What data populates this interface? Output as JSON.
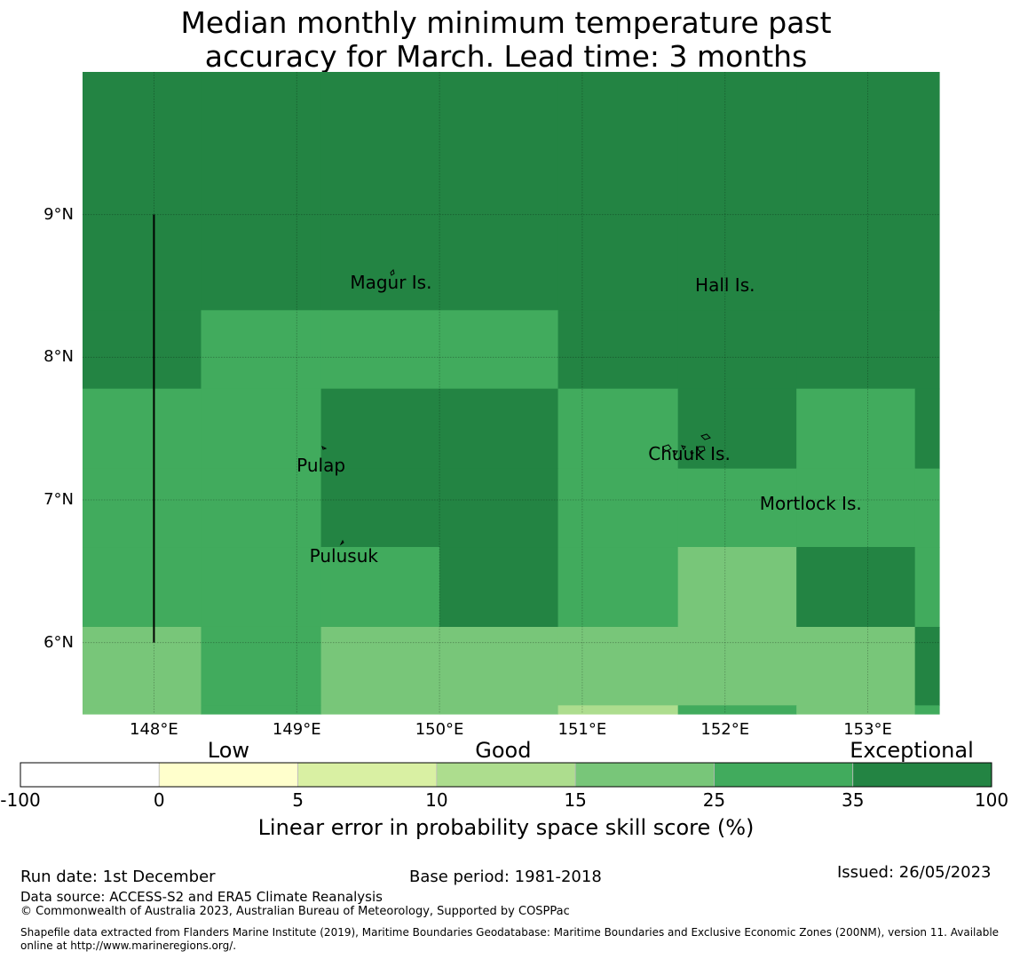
{
  "title": {
    "line1": "Median monthly minimum temperature past",
    "line2": "accuracy for March. Lead time: 3 months"
  },
  "map": {
    "lat_range": [
      5.5,
      10.0
    ],
    "lon_range": [
      147.5,
      153.5
    ],
    "lat_ticks": [
      {
        "value": 9,
        "label": "9°N"
      },
      {
        "value": 8,
        "label": "8°N"
      },
      {
        "value": 7,
        "label": "7°N"
      },
      {
        "value": 6,
        "label": "6°N"
      }
    ],
    "lon_ticks": [
      {
        "value": 148,
        "label": "148°E"
      },
      {
        "value": 149,
        "label": "149°E"
      },
      {
        "value": 150,
        "label": "150°E"
      },
      {
        "value": 151,
        "label": "151°E"
      },
      {
        "value": 152,
        "label": "152°E"
      },
      {
        "value": 153,
        "label": "153°E"
      }
    ],
    "places": [
      {
        "name": "Magur Is.",
        "lon": 149.66,
        "lat": 8.6
      },
      {
        "name": "Hall Is.",
        "lon": 152.0,
        "lat": 8.58
      },
      {
        "name": "Pulap",
        "lon": 149.17,
        "lat": 7.32
      },
      {
        "name": "Chuuk Is.",
        "lon": 151.75,
        "lat": 7.4
      },
      {
        "name": "Mortlock Is.",
        "lon": 152.6,
        "lat": 7.05
      },
      {
        "name": "Pulusuk",
        "lon": 149.33,
        "lat": 6.68
      }
    ],
    "boundary_line": {
      "lon": 148.0,
      "lat_from": 6.0,
      "lat_to": 9.0
    }
  },
  "chart_data": {
    "type": "heatmap",
    "colorbar": {
      "boundaries": [
        "-100",
        "0",
        "5",
        "10",
        "15",
        "25",
        "35",
        "100"
      ],
      "colors": [
        "#ffffff",
        "#ffffcc",
        "#d9f0a3",
        "#addd8e",
        "#78c679",
        "#41ab5d",
        "#238443"
      ],
      "categories": [
        {
          "label": "Low",
          "from": 0,
          "to": 5
        },
        {
          "label": "Good",
          "from": 10,
          "to": 15
        },
        {
          "label": "Exceptional",
          "from": 35,
          "to": 100
        }
      ],
      "label": "Linear error in probability space skill score (%)"
    },
    "lon_edges": [
      147.5,
      148.33,
      149.17,
      150.0,
      150.83,
      151.67,
      152.5,
      153.33,
      153.5
    ],
    "lat_edges": [
      10.0,
      8.33,
      7.78,
      7.22,
      6.67,
      6.11,
      5.56,
      5.5
    ],
    "skill_class": [
      [
        6,
        6,
        6,
        6,
        6,
        6,
        6,
        6
      ],
      [
        6,
        5,
        5,
        5,
        6,
        6,
        6,
        6
      ],
      [
        5,
        5,
        6,
        6,
        5,
        6,
        5,
        6
      ],
      [
        5,
        5,
        6,
        6,
        5,
        5,
        5,
        5
      ],
      [
        5,
        5,
        5,
        6,
        5,
        4,
        6,
        5
      ],
      [
        4,
        5,
        4,
        4,
        4,
        4,
        4,
        6
      ],
      [
        4,
        5,
        4,
        4,
        3,
        5,
        4,
        5
      ]
    ]
  },
  "footer": {
    "run_date": "Run date: 1st December",
    "base_period": "Base period: 1981-2018",
    "issued": "Issued: 26/05/2023",
    "data_source": "Data source: ACCESS-S2 and ERA5 Climate Reanalysis",
    "copyright": "© Commonwealth of Australia 2023, Australian Bureau of Meteorology, Supported by COSPPac",
    "shapefile_line1": "Shapefile data extracted from Flanders Marine Institute (2019), Maritime Boundaries Geodatabase: Maritime Boundaries and Exclusive Economic Zones (200NM), version 11. Available",
    "shapefile_line2": "online at http://www.marineregions.org/."
  }
}
